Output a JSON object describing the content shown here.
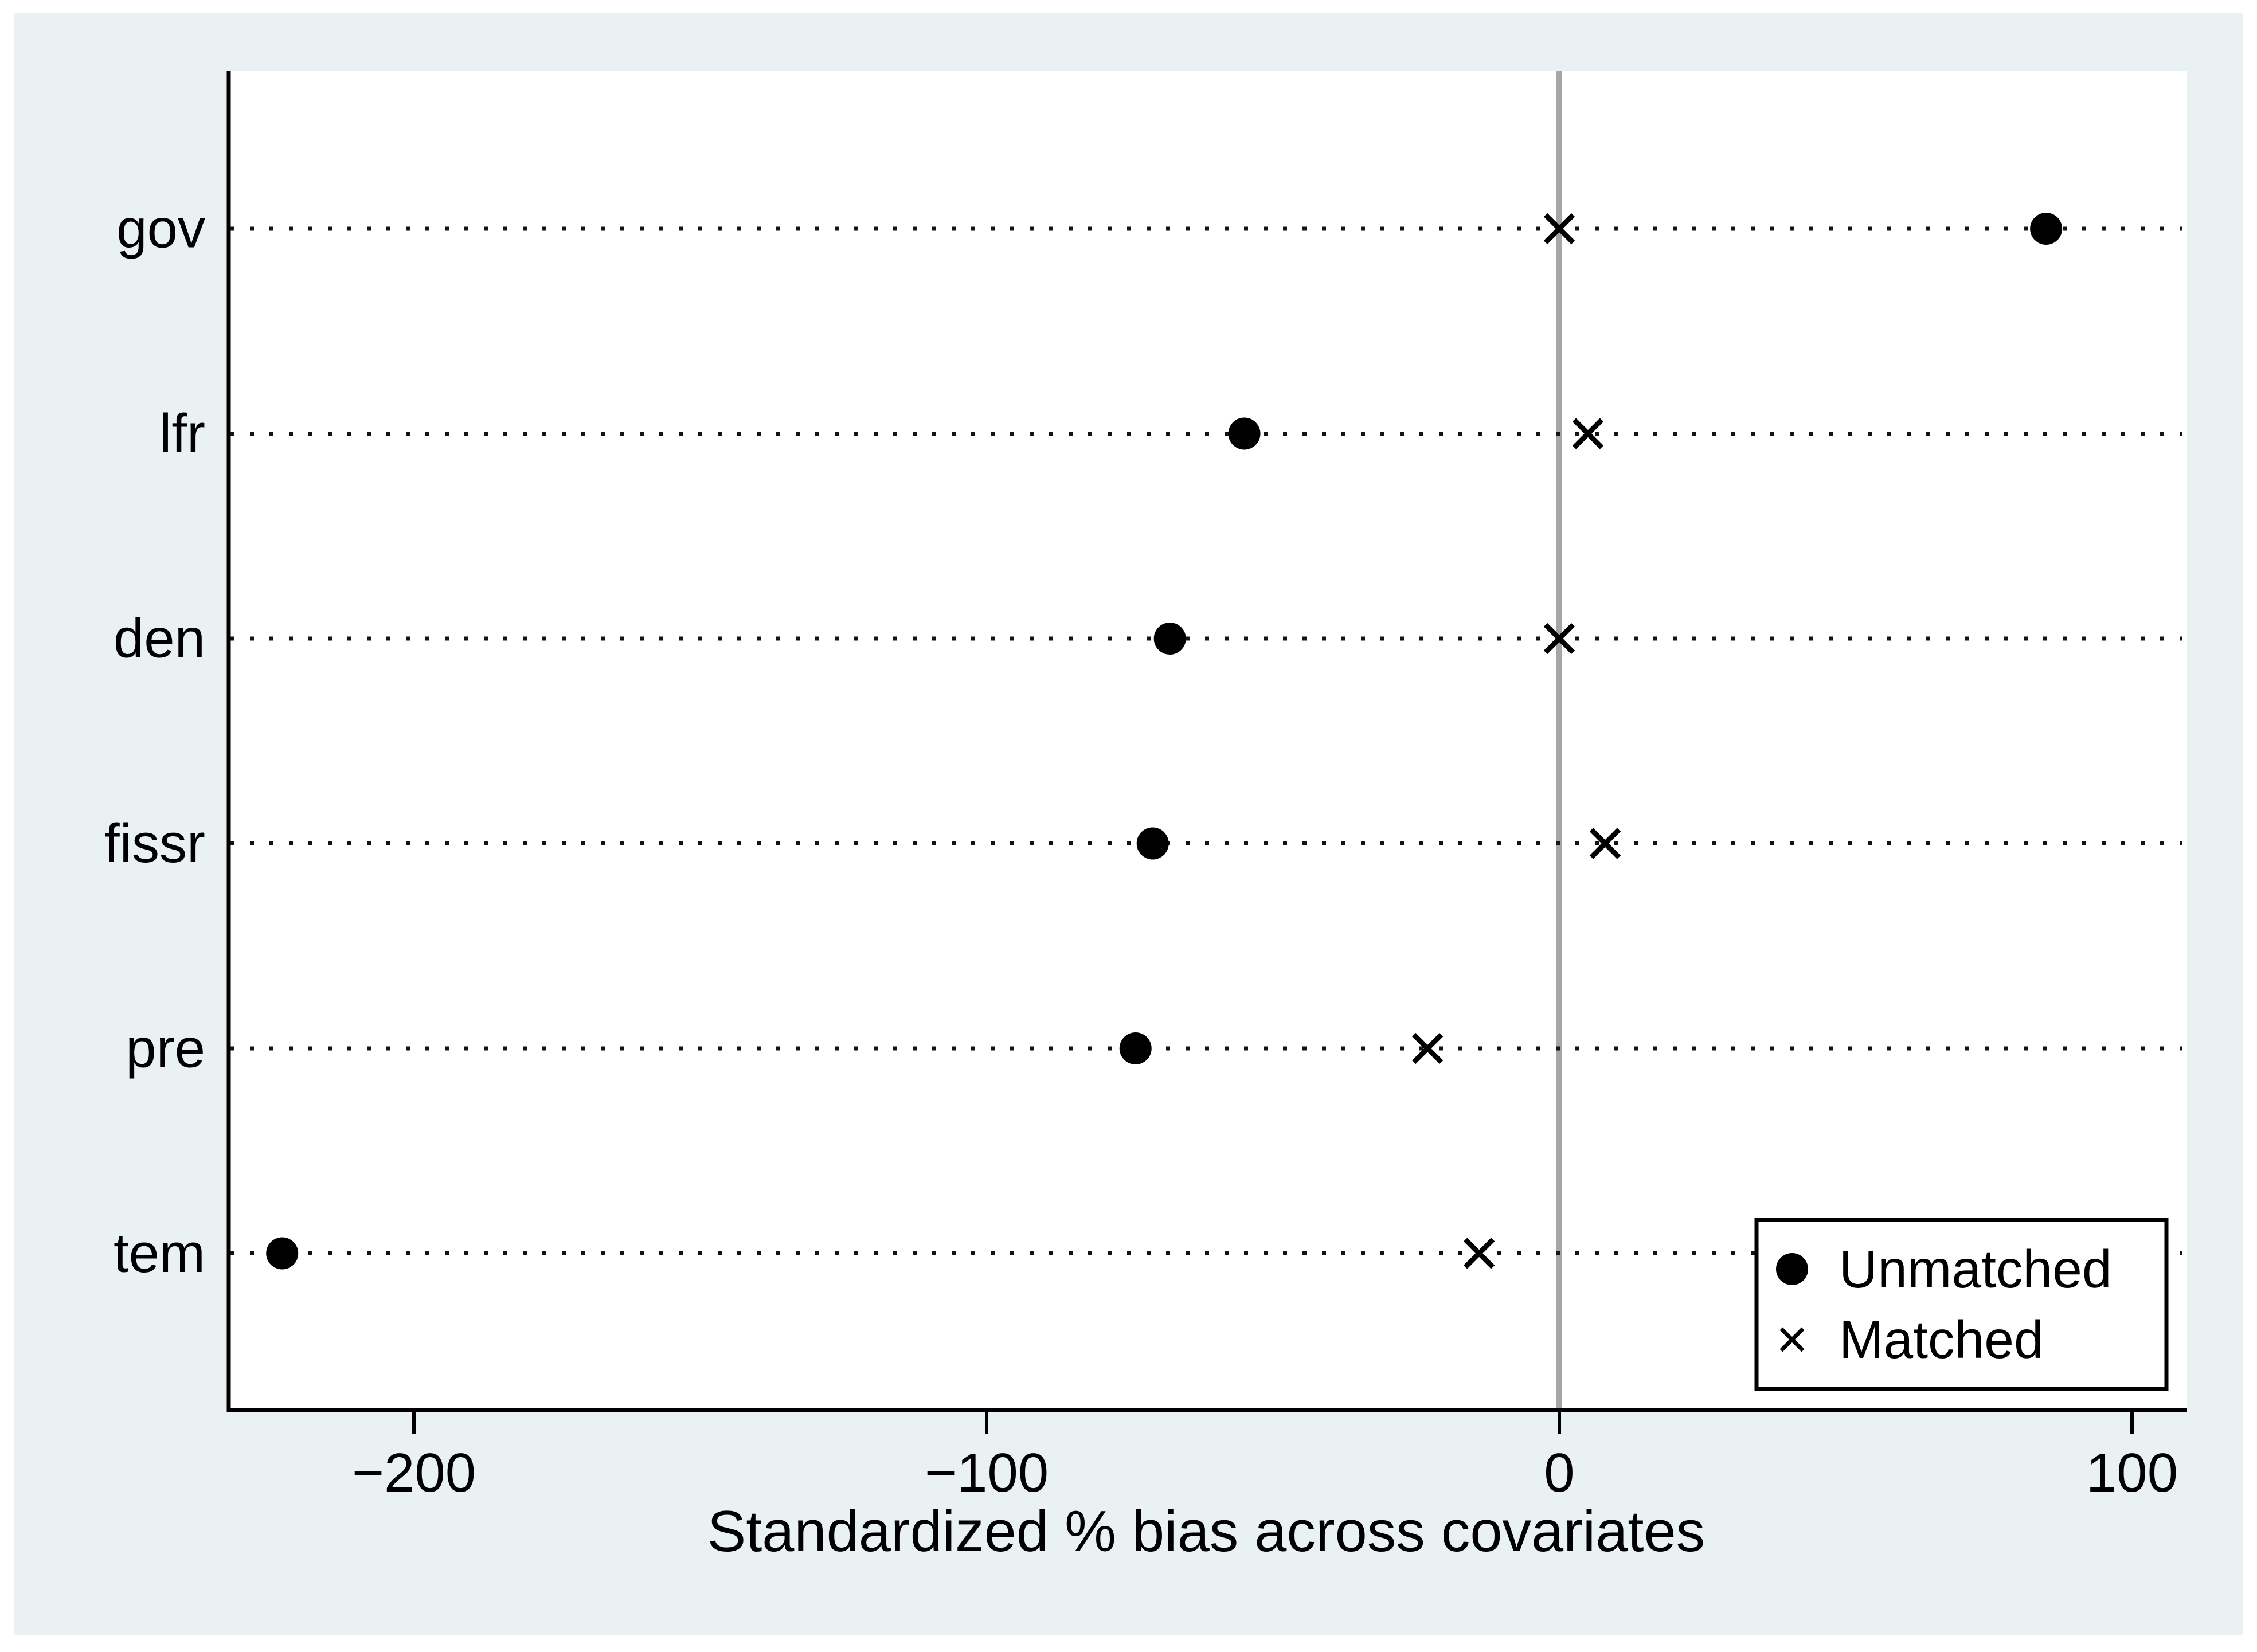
{
  "colors": {
    "page_bg": "#ffffff",
    "figure_bg": "#e9f1f2",
    "plot_bg": "#ffffff",
    "axis": "#000000",
    "zero_line": "#a6a6a6",
    "grid_dots": "#141414",
    "marker": "#000000",
    "legend_bg": "#ffffff",
    "legend_border": "#000000"
  },
  "chart_data": {
    "type": "scatter",
    "title": "",
    "xlabel": "Standardized % bias across covariates",
    "ylabel": "",
    "categories": [
      "gov",
      "lfr",
      "den",
      "fissr",
      "pre",
      "tem"
    ],
    "series": [
      {
        "name": "Unmatched",
        "marker": "circle",
        "color": "#000000",
        "values": [
          85,
          -55,
          -68,
          -71,
          -74,
          -223
        ]
      },
      {
        "name": "Matched",
        "marker": "x",
        "color": "#000000",
        "values": [
          0,
          5,
          0,
          8,
          -23,
          -14
        ]
      }
    ],
    "x_ticks": [
      {
        "value": -200,
        "label": "−200"
      },
      {
        "value": -100,
        "label": "−100"
      },
      {
        "value": 0,
        "label": "0"
      },
      {
        "value": 100,
        "label": "100"
      }
    ],
    "xlim": [
      -232,
      110
    ],
    "zero_reference_line": 0,
    "grid": "horizontal-dotted",
    "legend": {
      "position": "bottom-right",
      "entries": [
        "Unmatched",
        "Matched"
      ]
    }
  }
}
